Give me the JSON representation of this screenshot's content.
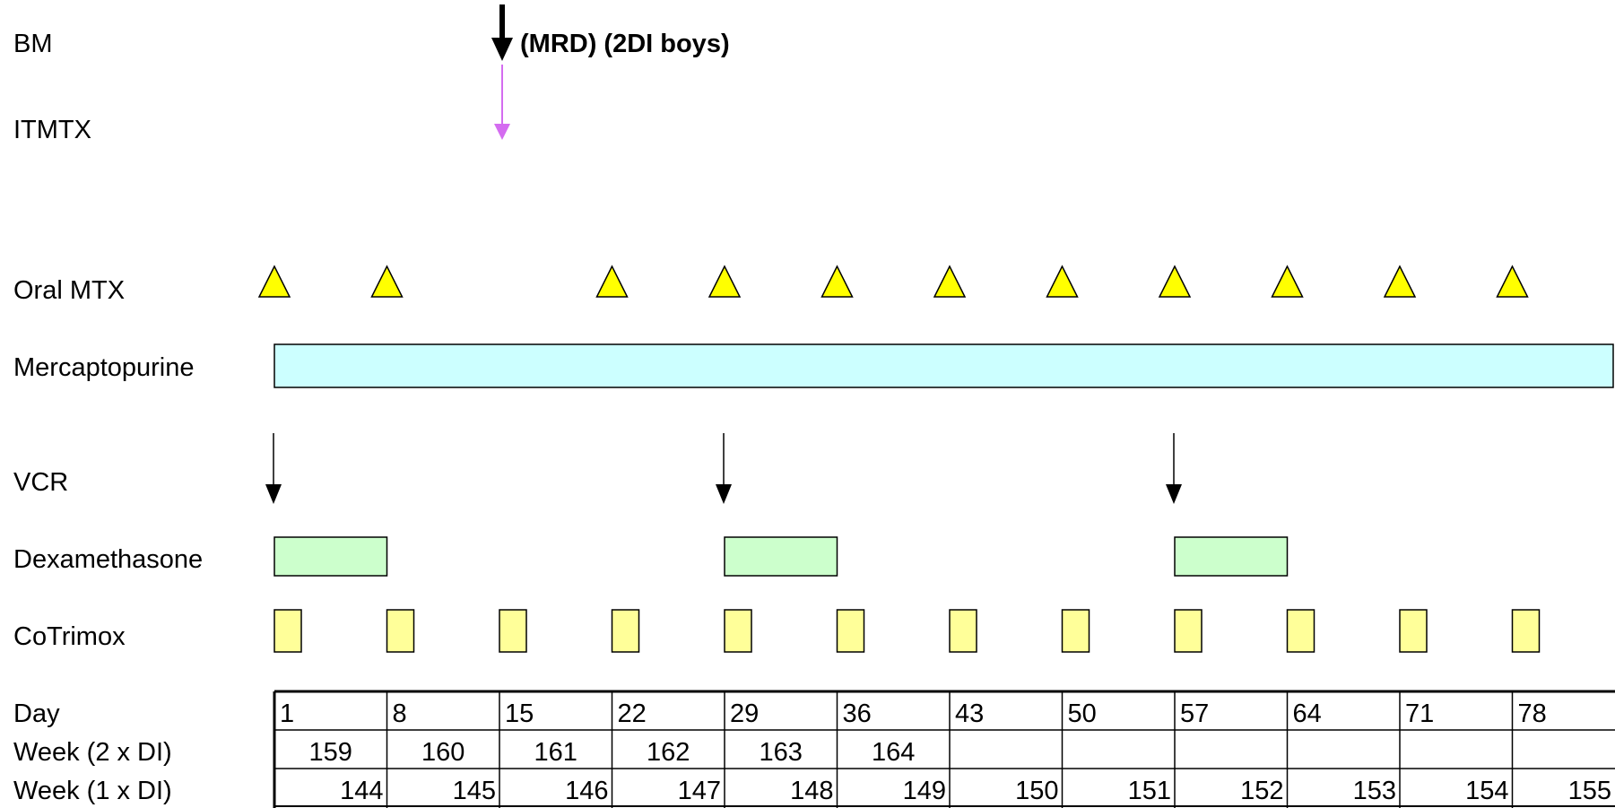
{
  "rows": [
    {
      "id": "bm",
      "label": "BM"
    },
    {
      "id": "itmtx",
      "label": "ITMTX"
    },
    {
      "id": "oral-mtx",
      "label": "Oral MTX"
    },
    {
      "id": "mercaptopurine",
      "label": "Mercaptopurine"
    },
    {
      "id": "vcr",
      "label": "VCR"
    },
    {
      "id": "dexamethasone",
      "label": "Dexamethasone"
    },
    {
      "id": "cotrimox",
      "label": "CoTrimox"
    }
  ],
  "bm_note": "(MRD) (2DI boys)",
  "colors": {
    "itmtx_arrow": "#d46cf0",
    "oral_mtx_fill": "#ffff00",
    "mercaptopurine_fill": "#ccffff",
    "dexamethasone_fill": "#ccffcc",
    "cotrimox_fill": "#ffff99"
  },
  "schedule": {
    "bm_day": 15,
    "itmtx_day": 15,
    "oral_mtx_days": [
      1,
      8,
      22,
      29,
      36,
      43,
      50,
      57,
      64,
      71,
      78
    ],
    "mercaptopurine_range": [
      1,
      84
    ],
    "vcr_days": [
      1,
      29,
      57
    ],
    "dexamethasone_ranges": [
      [
        1,
        5
      ],
      [
        29,
        33
      ],
      [
        57,
        61
      ]
    ],
    "cotrimox_days": [
      1,
      8,
      15,
      22,
      29,
      36,
      43,
      50,
      57,
      64,
      71,
      78
    ]
  },
  "table": {
    "row_labels": [
      "Day",
      "Week (2 x DI)",
      "Week (1 x DI)"
    ],
    "days": [
      "1",
      "8",
      "15",
      "22",
      "29",
      "36",
      "43",
      "50",
      "57",
      "64",
      "71",
      "78"
    ],
    "week_2xdi": [
      "159",
      "160",
      "161",
      "162",
      "163",
      "164",
      "",
      "",
      "",
      "",
      "",
      ""
    ],
    "week_1xdi": [
      "144",
      "145",
      "146",
      "147",
      "148",
      "149",
      "150",
      "151",
      "152",
      "153",
      "154",
      "155"
    ]
  }
}
